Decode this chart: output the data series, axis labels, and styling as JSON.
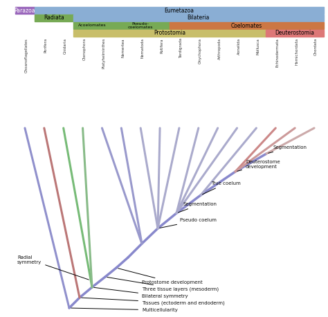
{
  "fig_width": 4.74,
  "fig_height": 4.58,
  "dpi": 100,
  "bg_color": "#ffffff",
  "taxa": [
    "Choanoflagellates",
    "Porifera",
    "Cnidaria",
    "Ctenophora",
    "Platyhelminthes",
    "Nemertea",
    "Nematoda",
    "Rotifera",
    "Tardigrada",
    "Onychophora",
    "Arthropoda",
    "Annelida",
    "Mollusca",
    "Echinodermata",
    "Hemichordata",
    "Chordata"
  ],
  "header_bars": [
    {
      "label": "Parazoa",
      "col": 0,
      "span": 1,
      "row": 0,
      "color": "#9966bb",
      "fc": "#ffffff",
      "fs": 5.5
    },
    {
      "label": "Eumetazoa",
      "col": 1,
      "span": 15,
      "row": 0,
      "color": "#8aaed4",
      "fc": "#000000",
      "fs": 5.5
    },
    {
      "label": "Radiata",
      "col": 1,
      "span": 2,
      "row": 1,
      "color": "#77aa55",
      "fc": "#000000",
      "fs": 5.5
    },
    {
      "label": "Bilateria",
      "col": 3,
      "span": 13,
      "row": 1,
      "color": "#8aaed4",
      "fc": "#000000",
      "fs": 5.5
    },
    {
      "label": "Acoelomates",
      "col": 3,
      "span": 2,
      "row": 2,
      "color": "#77aa55",
      "fc": "#000000",
      "fs": 4.5
    },
    {
      "label": "Pseudo-\ncoelomates",
      "col": 5,
      "span": 3,
      "row": 2,
      "color": "#77aa55",
      "fc": "#000000",
      "fs": 4.5
    },
    {
      "label": "Coelomates",
      "col": 8,
      "span": 8,
      "row": 2,
      "color": "#cc7744",
      "fc": "#000000",
      "fs": 5.5
    },
    {
      "label": "Protostomia",
      "col": 3,
      "span": 10,
      "row": 3,
      "color": "#c8be6a",
      "fc": "#000000",
      "fs": 5.5
    },
    {
      "label": "Deuterostomia",
      "col": 13,
      "span": 3,
      "row": 3,
      "color": "#dd7777",
      "fc": "#000000",
      "fs": 5.5
    }
  ],
  "branch_base_color": "#8888cc",
  "tip_colors": [
    "#9090cc",
    "#bb7777",
    "#77bb77",
    "#88bb88",
    "#9999cc",
    "#9999cc",
    "#aaaacc",
    "#aaaacc",
    "#aaaacc",
    "#aaaacc",
    "#aaaacc",
    "#aaaacc",
    "#aaaacc",
    "#cc8888",
    "#cc9999",
    "#ccaaaa"
  ],
  "ann_fs": 5.0
}
